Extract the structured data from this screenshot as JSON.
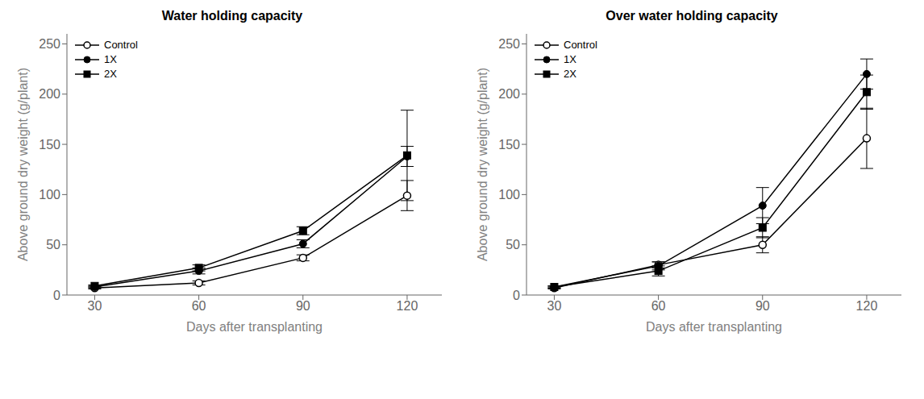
{
  "chart_data": [
    {
      "type": "line",
      "title": "Water holding capacity",
      "x": [
        30,
        60,
        90,
        120
      ],
      "xlabel": "Days after transplanting",
      "ylabel": "Above ground dry weight (g/plant)",
      "xlim": [
        22,
        130
      ],
      "xticks": [
        30,
        60,
        90,
        120
      ],
      "ylim": [
        0,
        260
      ],
      "yticks": [
        0,
        50,
        100,
        150,
        200,
        250
      ],
      "grid": false,
      "legend": "upper left",
      "series": [
        {
          "name": "Control",
          "color": "#000000",
          "marker": "circle_open",
          "line_style": "solid",
          "values": [
            7,
            12,
            37,
            99
          ],
          "yerr": [
            1,
            2,
            3,
            15
          ]
        },
        {
          "name": "1X",
          "color": "#000000",
          "marker": "circle",
          "line_style": "solid",
          "values": [
            8,
            24,
            51,
            138
          ],
          "yerr": [
            1,
            3,
            4,
            10
          ]
        },
        {
          "name": "2X",
          "color": "#000000",
          "marker": "square",
          "line_style": "solid",
          "values": [
            9,
            27,
            64,
            139
          ],
          "yerr": [
            1,
            3,
            4,
            45
          ]
        }
      ]
    },
    {
      "type": "line",
      "title": "Over water holding capacity",
      "x": [
        30,
        60,
        90,
        120
      ],
      "xlabel": "Days after transplanting",
      "ylabel": "Above ground dry weight (g/plant)",
      "xlim": [
        22,
        130
      ],
      "xticks": [
        30,
        60,
        90,
        120
      ],
      "ylim": [
        0,
        260
      ],
      "yticks": [
        0,
        50,
        100,
        150,
        200,
        250
      ],
      "grid": false,
      "legend": "upper left",
      "series": [
        {
          "name": "Control",
          "color": "#000000",
          "marker": "circle_open",
          "line_style": "solid",
          "values": [
            7,
            30,
            50,
            156
          ],
          "yerr": [
            1,
            3,
            8,
            30
          ]
        },
        {
          "name": "1X",
          "color": "#000000",
          "marker": "circle",
          "line_style": "solid",
          "values": [
            8,
            29,
            89,
            220
          ],
          "yerr": [
            1,
            4,
            18,
            15
          ]
        },
        {
          "name": "2X",
          "color": "#000000",
          "marker": "square",
          "line_style": "solid",
          "values": [
            8,
            24,
            67,
            202
          ],
          "yerr": [
            1,
            5,
            10,
            17
          ]
        }
      ]
    }
  ]
}
